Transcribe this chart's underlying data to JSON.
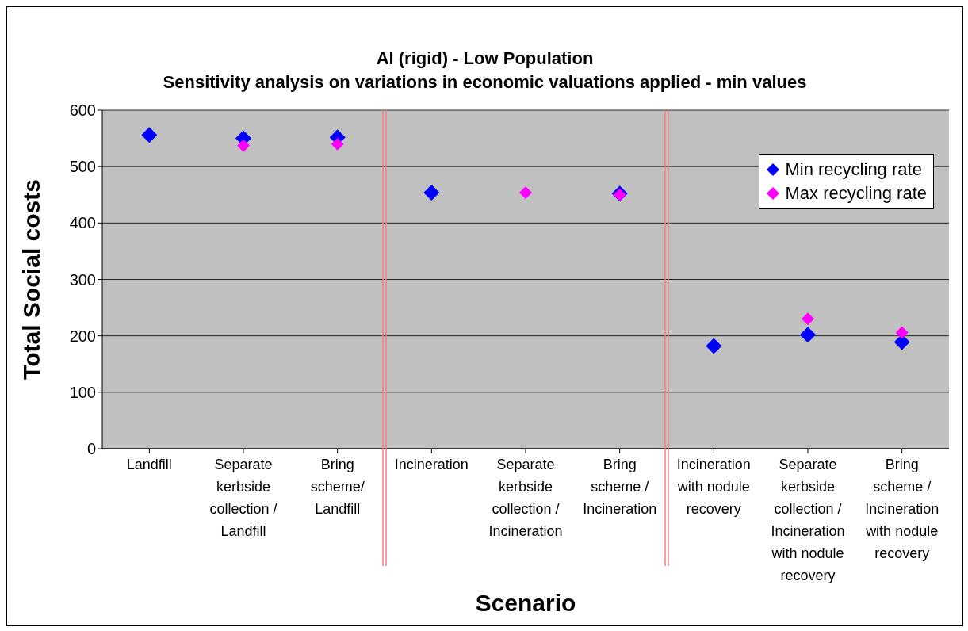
{
  "chart_data": {
    "type": "scatter",
    "title": "Al (rigid) - Low Population",
    "subtitle": "Sensitivity analysis on variations in economic valuations applied - min values",
    "xlabel": "Scenario",
    "ylabel": "Total Social costs",
    "categories": [
      "Landfill",
      "Separate kerbside collection / Landfill",
      "Bring scheme/ Landfill",
      "Incineration",
      "Separate kerbside collection / Incineration",
      "Bring scheme / Incineration",
      "Incineration with nodule recovery",
      "Separate kerbside collection / Incineration with nodule recovery",
      "Bring scheme / Incineration with nodule recovery"
    ],
    "series": [
      {
        "name": "Min recycling rate",
        "color": "#0000ff",
        "values": [
          556,
          550,
          552,
          454,
          null,
          452,
          182,
          202,
          189
        ]
      },
      {
        "name": "Max recycling rate",
        "color": "#ff00ff",
        "values": [
          null,
          537,
          540,
          null,
          454,
          450,
          null,
          230,
          206
        ]
      }
    ],
    "ylim": [
      0,
      600
    ],
    "yticks": [
      0,
      100,
      200,
      300,
      400,
      500,
      600
    ],
    "grid": "y",
    "legend": "top right",
    "marker": "diamond"
  }
}
